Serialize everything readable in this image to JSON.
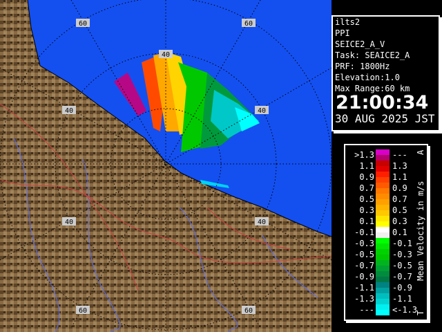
{
  "info": {
    "station": "ilts2",
    "scan_type": "PPI",
    "product": "SEICE2_A_V",
    "task": "Task: SEAICE2_A",
    "prf": "PRF: 1800Hz",
    "elevation": "Elevation:1.0",
    "max_range": "Max Range:60 km",
    "time": "21:00:34",
    "date": "30 AUG 2025 JST"
  },
  "legend": {
    "unit": "Mean Velocity in m/s",
    "top_marker": "A",
    "bottom_marker": "T",
    "rows": [
      {
        "left": ">1.3",
        "right": "---",
        "colors": [
          "#d800c8",
          "#b4006e"
        ]
      },
      {
        "left": "1.1",
        "right": "1.3",
        "colors": [
          "#c80000",
          "#e00000"
        ]
      },
      {
        "left": "0.9",
        "right": "1.1",
        "colors": [
          "#ff1e00",
          "#ff4000"
        ]
      },
      {
        "left": "0.7",
        "right": "0.9",
        "colors": [
          "#ff5a00",
          "#ff7800"
        ]
      },
      {
        "left": "0.5",
        "right": "0.7",
        "colors": [
          "#ff8c00",
          "#ffa000"
        ]
      },
      {
        "left": "0.3",
        "right": "0.5",
        "colors": [
          "#ffb400",
          "#ffc800"
        ]
      },
      {
        "left": "0.1",
        "right": "0.3",
        "colors": [
          "#ffe600",
          "#ffff00"
        ]
      },
      {
        "left": "-0.1",
        "right": "0.1",
        "colors": [
          "#ffffff",
          "#f0f0f0"
        ]
      },
      {
        "left": "-0.3",
        "right": "-0.1",
        "colors": [
          "#00ff00",
          "#00e600"
        ]
      },
      {
        "left": "-0.5",
        "right": "-0.3",
        "colors": [
          "#00d200",
          "#00c800"
        ]
      },
      {
        "left": "-0.7",
        "right": "-0.5",
        "colors": [
          "#00b41e",
          "#00a032"
        ]
      },
      {
        "left": "-0.9",
        "right": "-0.7",
        "colors": [
          "#008c3c",
          "#007846"
        ]
      },
      {
        "left": "-1.1",
        "right": "-0.9",
        "colors": [
          "#008282",
          "#00a0a0"
        ]
      },
      {
        "left": "-1.3",
        "right": "-1.1",
        "colors": [
          "#00bebe",
          "#00d2d2"
        ]
      },
      {
        "left": "---",
        "right": "<-1.3",
        "colors": [
          "#00f0f0",
          "#00ffff"
        ]
      }
    ]
  },
  "map": {
    "sea_color": "#1450f0",
    "land_color": "#8a6a42",
    "range_labels": [
      "40",
      "40",
      "40",
      "40",
      "40",
      "60",
      "60",
      "60",
      "60"
    ]
  }
}
